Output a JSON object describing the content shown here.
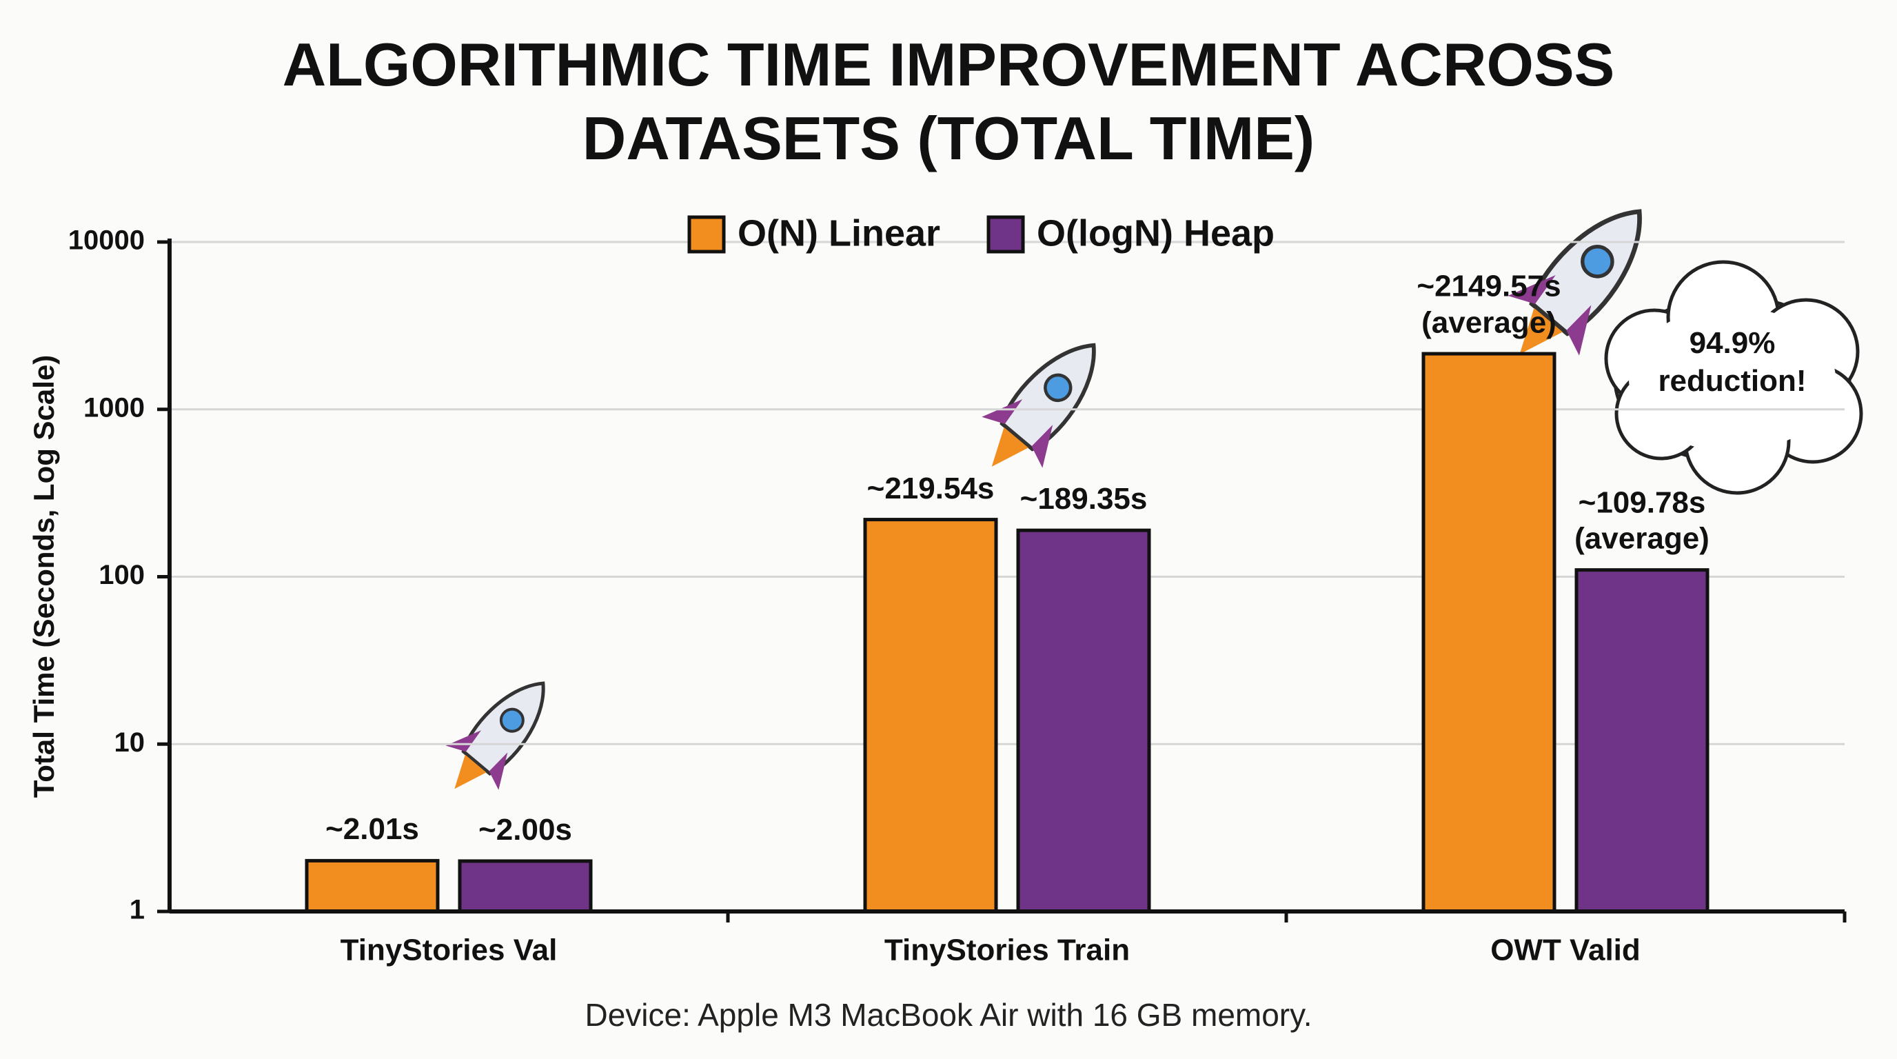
{
  "chart_data": {
    "type": "bar",
    "title": "ALGORITHMIC TIME IMPROVEMENT ACROSS DATASETS (TOTAL TIME)",
    "y_label": "Total Time (Seconds, Log Scale)",
    "categories": [
      "TinyStories Val",
      "TinyStories Train",
      "OWT Valid"
    ],
    "series": [
      {
        "name": "O(N) Linear",
        "color": "#f28e1f",
        "values": [
          2.01,
          219.54,
          2149.57
        ],
        "value_labels": [
          "~2.01s",
          "~219.54s",
          "~2149.57s (average)"
        ]
      },
      {
        "name": "O(logN) Heap",
        "color": "#6f3488",
        "values": [
          2.0,
          189.35,
          109.78
        ],
        "value_labels": [
          "~2.00s",
          "~189.35s",
          "~109.78s (average)"
        ]
      }
    ],
    "ylim": [
      1,
      10000
    ],
    "yticks": [
      1,
      10,
      100,
      1000,
      10000
    ],
    "log_scale": true,
    "grid": true,
    "legend": "top",
    "annotation": "94.9% reduction!",
    "footer": "Device: Apple M3 MacBook Air with 16 GB memory."
  }
}
